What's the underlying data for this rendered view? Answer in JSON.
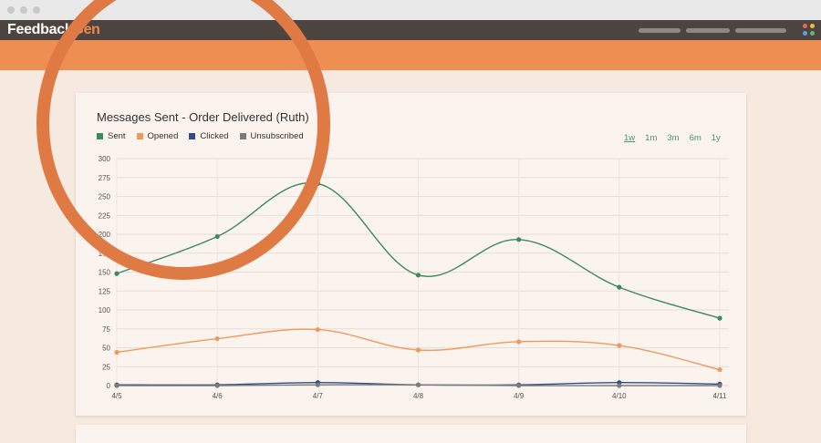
{
  "app": {
    "logo_main": "Feedback",
    "logo_accent": "Gen"
  },
  "chart_panel": {
    "ranges": [
      "1w",
      "1m",
      "3m",
      "6m",
      "1y"
    ],
    "active_range": "1w"
  },
  "colors": {
    "sent": "#3a8a62",
    "opened": "#f0995c",
    "clicked": "#2b4f8e",
    "unsubscribed": "#7b7b7b",
    "accent": "#ef8e52",
    "ring": "#e07a44"
  },
  "chart_data": {
    "type": "line",
    "title": "Messages Sent - Order Delivered (Ruth)",
    "categories": [
      "4/5",
      "4/6",
      "4/7",
      "4/8",
      "4/9",
      "4/10",
      "4/11"
    ],
    "ylim": [
      0,
      300
    ],
    "yticks": [
      0,
      25,
      50,
      75,
      100,
      125,
      150,
      175,
      200,
      225,
      250,
      275,
      300
    ],
    "grid": true,
    "legend_position": "top-left",
    "series": [
      {
        "name": "Sent",
        "color": "#3a8a62",
        "values": [
          148,
          197,
          267,
          146,
          193,
          130,
          89
        ]
      },
      {
        "name": "Opened",
        "color": "#f0995c",
        "values": [
          44,
          62,
          74,
          47,
          58,
          53,
          21
        ]
      },
      {
        "name": "Clicked",
        "color": "#2b4f8e",
        "values": [
          1,
          1,
          4,
          1,
          1,
          4,
          2
        ]
      },
      {
        "name": "Unsubscribed",
        "color": "#7b7b7b",
        "values": [
          0,
          0,
          1,
          1,
          0,
          0,
          0
        ]
      }
    ]
  }
}
